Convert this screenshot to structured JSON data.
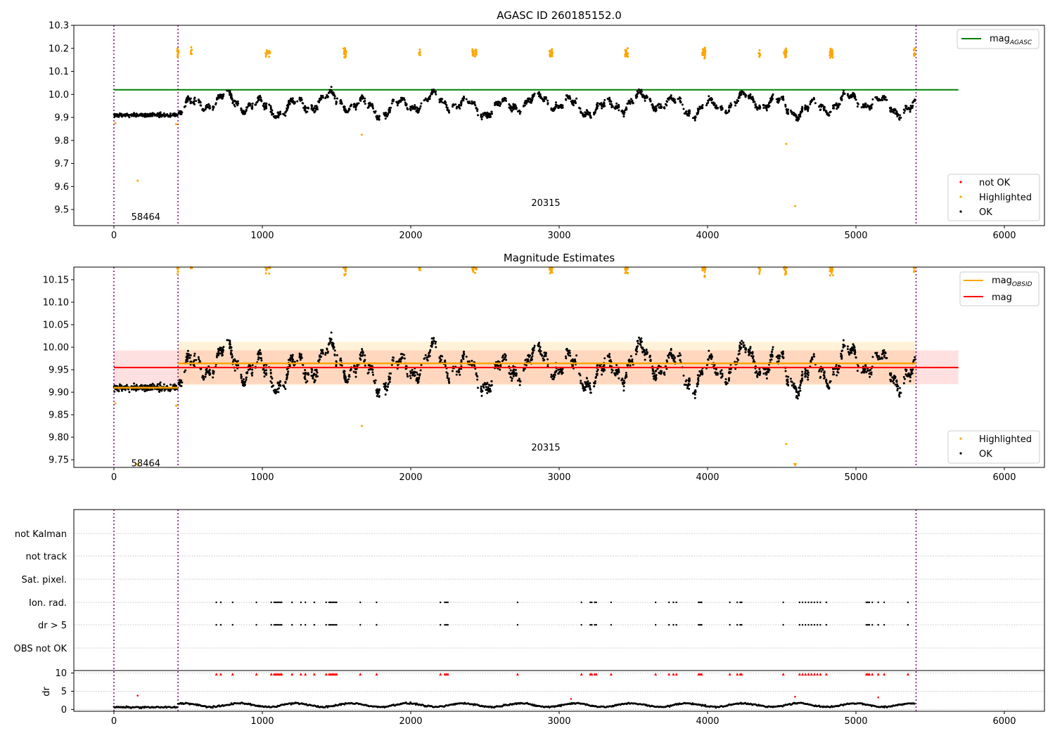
{
  "colors": {
    "ok": "#000000",
    "highlighted": "#ffa500",
    "not_ok": "#ff0000",
    "mag_agasc": "#008000",
    "mag_obsid": "#ffa500",
    "mag": "#ff0000",
    "obsid_boundary": "#800080",
    "grid": "#b0b0b0"
  },
  "chart_data": [
    {
      "type": "scatter",
      "title": "AGASC ID 260185152.0",
      "xlim": [
        -270,
        6270
      ],
      "ylim": [
        9.43,
        10.3
      ],
      "xticks": [
        "0",
        "1000",
        "2000",
        "3000",
        "4000",
        "5000",
        "6000"
      ],
      "yticks": [
        "9.5",
        "9.6",
        "9.7",
        "9.8",
        "9.9",
        "10.0",
        "10.1",
        "10.2",
        "10.3"
      ],
      "legend_top": {
        "position": "top-right",
        "entries": [
          {
            "label": "mag",
            "subscript": "AGASC",
            "kind": "line",
            "color": "mag_agasc"
          }
        ]
      },
      "legend_bottom": {
        "position": "bottom-right",
        "entries": [
          {
            "label": "not OK",
            "kind": "dot",
            "color": "not_ok"
          },
          {
            "label": "Highlighted",
            "kind": "dot",
            "color": "highlighted"
          },
          {
            "label": "OK",
            "kind": "dot",
            "color": "ok"
          }
        ]
      },
      "annotations": [
        {
          "text": "58464",
          "x": 215,
          "y": 9.47
        },
        {
          "text": "20315",
          "x": 2910,
          "y": 9.53
        }
      ],
      "obsid_boundaries": [
        0,
        432,
        5405
      ],
      "lines": [
        {
          "name": "mag_AGASC",
          "y": 10.02,
          "x": [
            0,
            5690
          ],
          "color": "mag_agasc"
        }
      ]
    },
    {
      "type": "scatter",
      "title": "Magnitude Estimates",
      "xlim": [
        -270,
        6270
      ],
      "ylim": [
        9.733,
        10.178
      ],
      "xticks": [
        "0",
        "1000",
        "2000",
        "3000",
        "4000",
        "5000",
        "6000"
      ],
      "yticks": [
        "9.75",
        "9.80",
        "9.85",
        "9.90",
        "9.95",
        "10.00",
        "10.05",
        "10.10",
        "10.15"
      ],
      "legend_top": {
        "position": "top-right",
        "entries": [
          {
            "label": "mag",
            "subscript": "OBSID",
            "kind": "line",
            "color": "mag_obsid"
          },
          {
            "label": "mag",
            "kind": "line",
            "color": "mag"
          }
        ]
      },
      "legend_bottom": {
        "position": "bottom-right",
        "entries": [
          {
            "label": "Highlighted",
            "kind": "dot",
            "color": "highlighted"
          },
          {
            "label": "OK",
            "kind": "dot",
            "color": "ok"
          }
        ]
      },
      "annotations": [
        {
          "text": "58464",
          "x": 215,
          "y": 9.743
        },
        {
          "text": "20315",
          "x": 2910,
          "y": 9.778
        }
      ],
      "obsid_boundaries": [
        0,
        432,
        5405
      ],
      "mag": {
        "value": 9.955,
        "band": [
          9.918,
          9.993
        ],
        "x": [
          0,
          5690
        ]
      },
      "mag_obsid": [
        {
          "x": [
            0,
            432
          ],
          "value": 9.91,
          "band": [
            9.904,
            9.916
          ]
        },
        {
          "x": [
            432,
            5405
          ],
          "value": 9.964,
          "band": [
            9.916,
            10.012
          ]
        }
      ]
    },
    {
      "type": "scatter",
      "title": "",
      "xlim": [
        -270,
        6270
      ],
      "xticks": [
        "0",
        "1000",
        "2000",
        "3000",
        "4000",
        "5000",
        "6000"
      ],
      "flag_rows": [
        "not Kalman",
        "not track",
        "Sat. pixel.",
        "Ion. rad.",
        "dr > 5",
        "OBS not OK"
      ],
      "flag_events_x": [
        690,
        720,
        800,
        960,
        1060,
        1080,
        1090,
        1100,
        1110,
        1120,
        1130,
        1200,
        1260,
        1290,
        1350,
        1430,
        1450,
        1460,
        1470,
        1480,
        1490,
        1500,
        1660,
        1770,
        2200,
        2230,
        2240,
        2250,
        2720,
        3150,
        3210,
        3220,
        3240,
        3250,
        3350,
        3650,
        3740,
        3770,
        3790,
        3940,
        3950,
        3960,
        4150,
        4200,
        4220,
        4230,
        4510,
        4620,
        4640,
        4660,
        4680,
        4700,
        4720,
        4740,
        4760,
        4800,
        5070,
        5080,
        5090,
        5110,
        5150,
        5190,
        5350
      ],
      "dr": {
        "ylabel": "dr",
        "ylim": [
          -0.5,
          10.5
        ],
        "yticks": [
          "0",
          "5",
          "10"
        ],
        "clip_marker_y": 9.7,
        "outliers": [
          {
            "x": 160,
            "y": 3.8
          },
          {
            "x": 3080,
            "y": 2.9
          },
          {
            "x": 4590,
            "y": 3.5
          },
          {
            "x": 5150,
            "y": 3.3
          }
        ]
      },
      "obsid_boundaries": [
        0,
        432,
        5405
      ]
    }
  ]
}
